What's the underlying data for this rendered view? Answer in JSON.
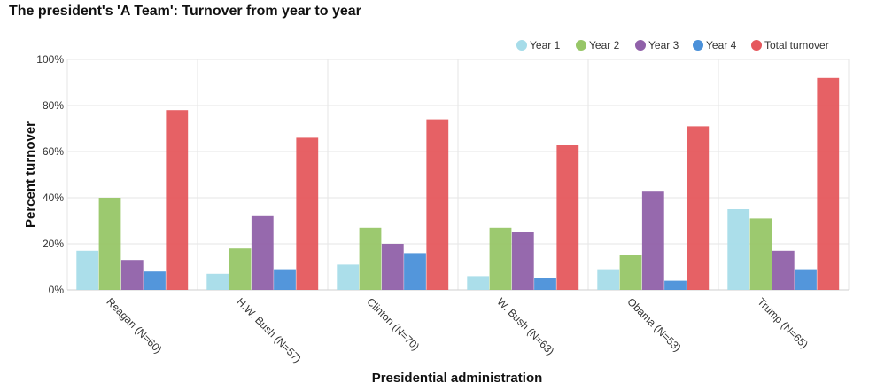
{
  "chart_data": {
    "type": "bar",
    "title": "The president's 'A Team': Turnover from year to year",
    "xlabel": "Presidential administration",
    "ylabel": "Percent turnover",
    "ylim": [
      0,
      100
    ],
    "y_ticks": [
      "0%",
      "20%",
      "40%",
      "60%",
      "80%",
      "100%"
    ],
    "y_tick_values": [
      0,
      20,
      40,
      60,
      80,
      100
    ],
    "grid": true,
    "legend_position": "top-right",
    "categories": [
      "Reagan (N=60)",
      "H.W. Bush (N=57)",
      "Clinton (N=70)",
      "W. Bush (N=63)",
      "Obama (N=53)",
      "Trump (N=65)"
    ],
    "series": [
      {
        "name": "Year 1",
        "color": "#a6dce9",
        "values": [
          17,
          7,
          11,
          6,
          9,
          35
        ]
      },
      {
        "name": "Year 2",
        "color": "#97c667",
        "values": [
          40,
          18,
          27,
          27,
          15,
          31
        ]
      },
      {
        "name": "Year 3",
        "color": "#9061a9",
        "values": [
          13,
          32,
          20,
          25,
          43,
          17
        ]
      },
      {
        "name": "Year 4",
        "color": "#4a90d9",
        "values": [
          8,
          9,
          16,
          5,
          4,
          9
        ]
      },
      {
        "name": "Total turnover",
        "color": "#e5585d",
        "values": [
          78,
          66,
          74,
          63,
          71,
          92
        ]
      }
    ]
  }
}
